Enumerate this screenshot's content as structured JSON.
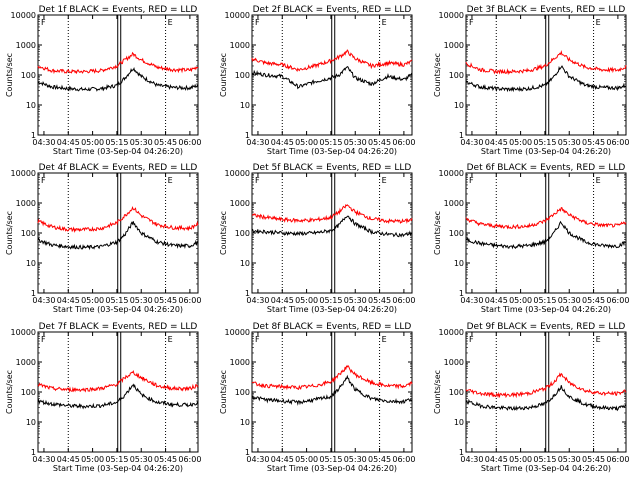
{
  "figure": {
    "time_ticks": [
      "04:30",
      "04:45",
      "05:00",
      "05:15",
      "05:30",
      "05:45",
      "06:00"
    ],
    "y_ticks": [
      "1",
      "10",
      "100",
      "1000",
      "10000"
    ],
    "xlabel": "Start Time (03-Sep-04 04:26:20)",
    "ylabel": "Counts/sec",
    "marker_labels": [
      "F",
      "E"
    ]
  },
  "chart_data": [
    {
      "type": "line",
      "title": "Det 1f BLACK = Events, RED = LLD",
      "yscale": "log",
      "xlim": [
        "04:26:20",
        "06:05"
      ],
      "ylim": [
        1,
        10000
      ],
      "x": [
        "04:26",
        "04:35",
        "04:45",
        "04:55",
        "05:05",
        "05:15",
        "05:20",
        "05:25",
        "05:30",
        "05:40",
        "05:50",
        "06:00",
        "06:05"
      ],
      "series": [
        {
          "name": "BLACK = Events",
          "color": "#000000",
          "values": [
            60,
            40,
            35,
            33,
            35,
            45,
            80,
            170,
            90,
            45,
            38,
            37,
            45
          ]
        },
        {
          "name": "RED = LLD",
          "color": "#ff0000",
          "values": [
            200,
            140,
            130,
            130,
            140,
            200,
            320,
            500,
            320,
            180,
            150,
            145,
            190
          ]
        }
      ]
    },
    {
      "type": "line",
      "title": "Det 2f BLACK = Events, RED = LLD",
      "yscale": "log",
      "xlim": [
        "04:26:20",
        "06:05"
      ],
      "ylim": [
        1,
        10000
      ],
      "x": [
        "04:26",
        "04:35",
        "04:45",
        "04:55",
        "05:05",
        "05:15",
        "05:20",
        "05:25",
        "05:30",
        "05:40",
        "05:50",
        "06:00",
        "06:05"
      ],
      "series": [
        {
          "name": "BLACK = Events",
          "color": "#000000",
          "values": [
            120,
            100,
            90,
            40,
            60,
            80,
            100,
            180,
            80,
            50,
            90,
            70,
            100
          ]
        },
        {
          "name": "RED = LLD",
          "color": "#ff0000",
          "values": [
            350,
            250,
            220,
            150,
            200,
            300,
            400,
            600,
            350,
            200,
            250,
            220,
            280
          ]
        }
      ]
    },
    {
      "type": "line",
      "title": "Det 3f BLACK = Events, RED = LLD",
      "yscale": "log",
      "xlim": [
        "04:26:20",
        "06:05"
      ],
      "ylim": [
        1,
        10000
      ],
      "x": [
        "04:26",
        "04:35",
        "04:45",
        "04:55",
        "05:05",
        "05:15",
        "05:20",
        "05:25",
        "05:30",
        "05:40",
        "05:50",
        "06:00",
        "06:05"
      ],
      "series": [
        {
          "name": "BLACK = Events",
          "color": "#000000",
          "values": [
            60,
            40,
            35,
            33,
            35,
            45,
            80,
            200,
            90,
            45,
            38,
            37,
            45
          ]
        },
        {
          "name": "RED = LLD",
          "color": "#ff0000",
          "values": [
            250,
            150,
            130,
            130,
            140,
            200,
            330,
            550,
            320,
            180,
            150,
            145,
            190
          ]
        }
      ]
    },
    {
      "type": "line",
      "title": "Det 4f BLACK = Events, RED = LLD",
      "yscale": "log",
      "xlim": [
        "04:26:20",
        "06:05"
      ],
      "ylim": [
        1,
        10000
      ],
      "x": [
        "04:26",
        "04:35",
        "04:45",
        "04:55",
        "05:05",
        "05:15",
        "05:20",
        "05:25",
        "05:30",
        "05:40",
        "05:50",
        "06:00",
        "06:05"
      ],
      "series": [
        {
          "name": "BLACK = Events",
          "color": "#000000",
          "values": [
            60,
            40,
            35,
            33,
            35,
            50,
            90,
            230,
            100,
            50,
            38,
            37,
            50
          ]
        },
        {
          "name": "RED = LLD",
          "color": "#ff0000",
          "values": [
            250,
            160,
            130,
            130,
            140,
            220,
            380,
            700,
            380,
            190,
            150,
            145,
            200
          ]
        }
      ]
    },
    {
      "type": "line",
      "title": "Det 5f BLACK = Events, RED = LLD",
      "yscale": "log",
      "xlim": [
        "04:26:20",
        "06:05"
      ],
      "ylim": [
        1,
        10000
      ],
      "x": [
        "04:26",
        "04:35",
        "04:45",
        "04:55",
        "05:05",
        "05:15",
        "05:20",
        "05:25",
        "05:30",
        "05:40",
        "05:50",
        "06:00",
        "06:05"
      ],
      "series": [
        {
          "name": "BLACK = Events",
          "color": "#000000",
          "values": [
            120,
            110,
            100,
            95,
            100,
            120,
            180,
            400,
            200,
            110,
            90,
            85,
            100
          ]
        },
        {
          "name": "RED = LLD",
          "color": "#ff0000",
          "values": [
            400,
            330,
            280,
            260,
            270,
            330,
            500,
            850,
            500,
            300,
            250,
            245,
            280
          ]
        }
      ]
    },
    {
      "type": "line",
      "title": "Det 6f BLACK = Events, RED = LLD",
      "yscale": "log",
      "xlim": [
        "04:26:20",
        "06:05"
      ],
      "ylim": [
        1,
        10000
      ],
      "x": [
        "04:26",
        "04:35",
        "04:45",
        "04:55",
        "05:05",
        "05:15",
        "05:20",
        "05:25",
        "05:30",
        "05:40",
        "05:50",
        "06:00",
        "06:05"
      ],
      "series": [
        {
          "name": "BLACK = Events",
          "color": "#000000",
          "values": [
            60,
            45,
            38,
            35,
            38,
            50,
            90,
            230,
            100,
            50,
            38,
            37,
            50
          ]
        },
        {
          "name": "RED = LLD",
          "color": "#ff0000",
          "values": [
            300,
            200,
            170,
            160,
            170,
            250,
            400,
            650,
            400,
            220,
            180,
            175,
            230
          ]
        }
      ]
    },
    {
      "type": "line",
      "title": "Det 7f BLACK = Events, RED = LLD",
      "yscale": "log",
      "xlim": [
        "04:26:20",
        "06:05"
      ],
      "ylim": [
        1,
        10000
      ],
      "x": [
        "04:26",
        "04:35",
        "04:45",
        "04:55",
        "05:05",
        "05:15",
        "05:20",
        "05:25",
        "05:30",
        "05:40",
        "05:50",
        "06:00",
        "06:05"
      ],
      "series": [
        {
          "name": "BLACK = Events",
          "color": "#000000",
          "values": [
            50,
            40,
            35,
            33,
            35,
            45,
            80,
            180,
            80,
            45,
            38,
            37,
            45
          ]
        },
        {
          "name": "RED = LLD",
          "color": "#ff0000",
          "values": [
            180,
            130,
            120,
            120,
            130,
            180,
            300,
            450,
            300,
            160,
            130,
            130,
            170
          ]
        }
      ]
    },
    {
      "type": "line",
      "title": "Det 8f BLACK = Events, RED = LLD",
      "yscale": "log",
      "xlim": [
        "04:26:20",
        "06:05"
      ],
      "ylim": [
        1,
        10000
      ],
      "x": [
        "04:26",
        "04:35",
        "04:45",
        "04:55",
        "05:05",
        "05:15",
        "05:20",
        "05:25",
        "05:30",
        "05:40",
        "05:50",
        "06:00",
        "06:05"
      ],
      "series": [
        {
          "name": "BLACK = Events",
          "color": "#000000",
          "values": [
            70,
            55,
            50,
            45,
            55,
            70,
            130,
            300,
            120,
            60,
            50,
            48,
            60
          ]
        },
        {
          "name": "RED = LLD",
          "color": "#ff0000",
          "values": [
            200,
            160,
            150,
            140,
            160,
            220,
            380,
            700,
            380,
            200,
            160,
            155,
            200
          ]
        }
      ]
    },
    {
      "type": "line",
      "title": "Det 9f BLACK = Events, RED = LLD",
      "yscale": "log",
      "xlim": [
        "04:26:20",
        "06:05"
      ],
      "ylim": [
        1,
        10000
      ],
      "x": [
        "04:26",
        "04:35",
        "04:45",
        "04:55",
        "05:05",
        "05:15",
        "05:20",
        "05:25",
        "05:30",
        "05:40",
        "05:50",
        "06:00",
        "06:05"
      ],
      "series": [
        {
          "name": "BLACK = Events",
          "color": "#000000",
          "values": [
            50,
            35,
            30,
            28,
            30,
            40,
            70,
            150,
            70,
            38,
            30,
            28,
            35
          ]
        },
        {
          "name": "RED = LLD",
          "color": "#ff0000",
          "values": [
            120,
            90,
            80,
            80,
            90,
            130,
            200,
            400,
            200,
            110,
            90,
            88,
            110
          ]
        }
      ]
    }
  ]
}
